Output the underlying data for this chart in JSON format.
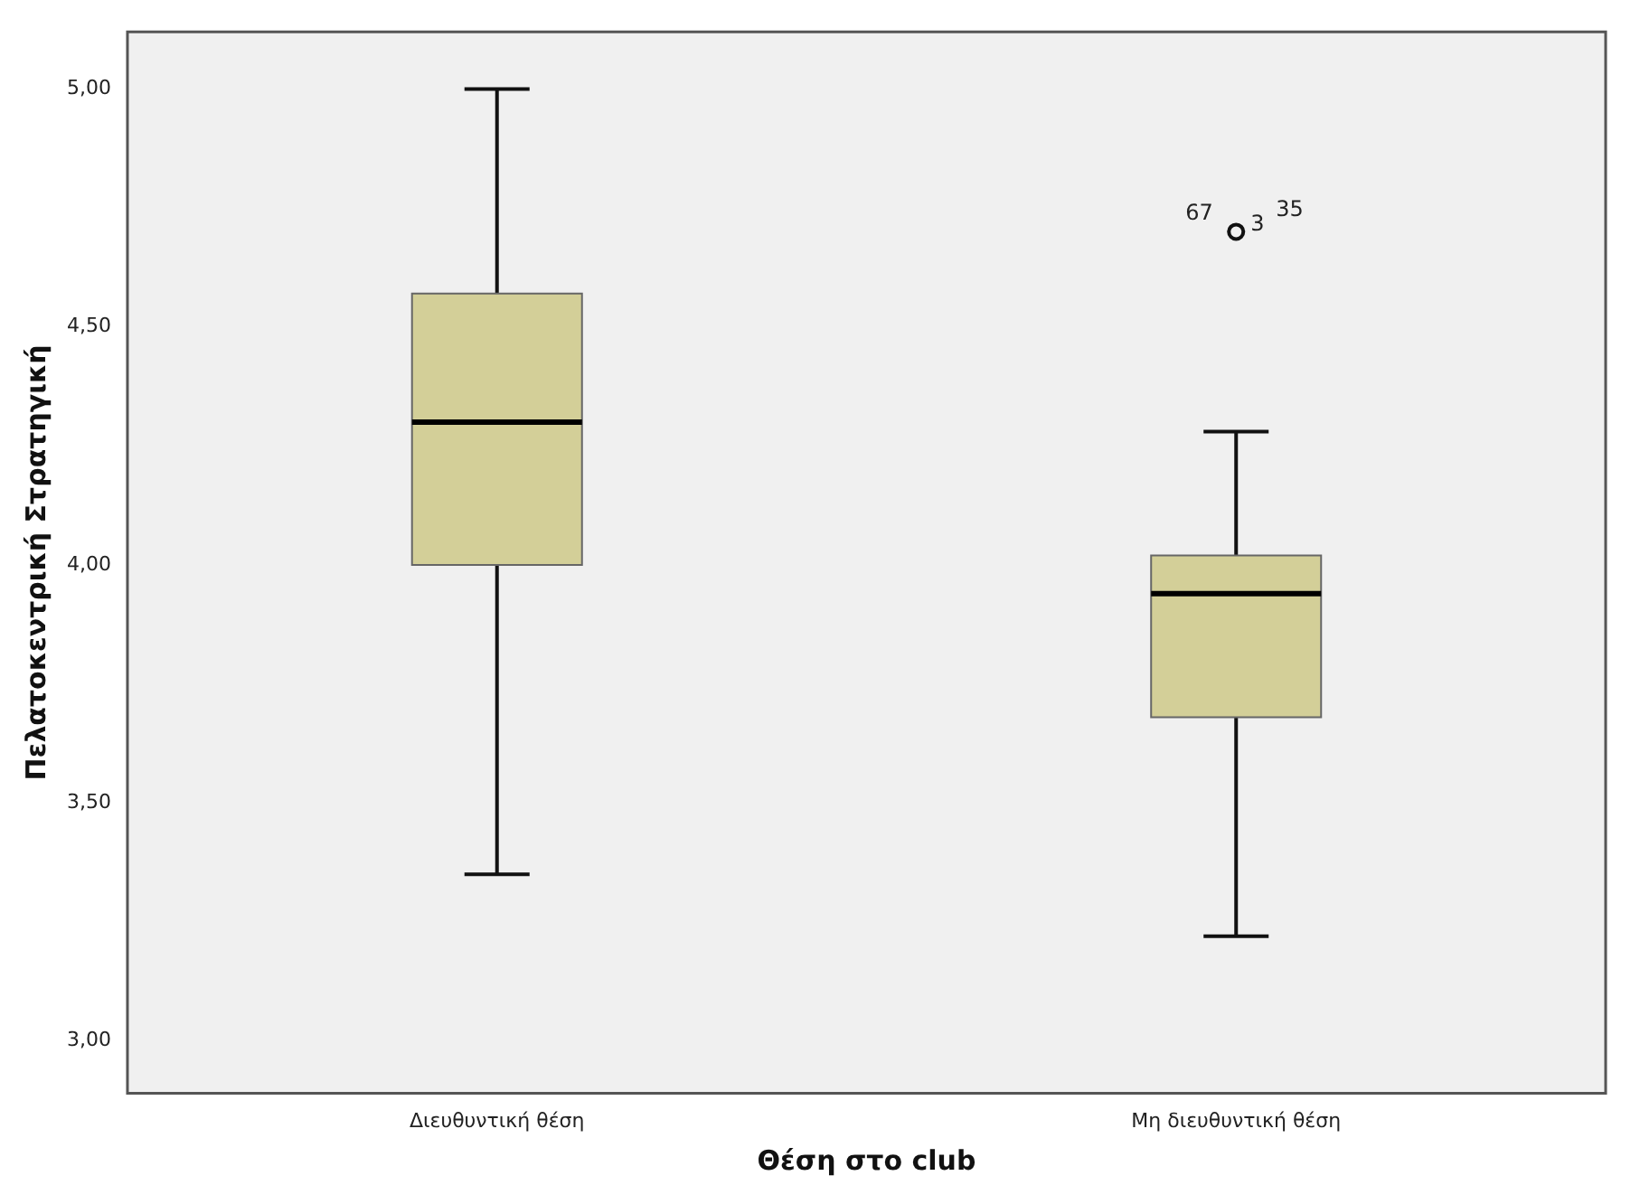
{
  "chart_data": {
    "type": "box",
    "xlabel": "Θέση στο club",
    "ylabel": "Πελατοκεντρική Στρατηγική",
    "categories": [
      "Διευθυντική θέση",
      "Μη διευθυντική θέση"
    ],
    "color": "#d3cf98",
    "boxes": [
      {
        "low": 3.35,
        "q1": 4.0,
        "median": 4.3,
        "q3": 4.57,
        "high": 5.0
      },
      {
        "low": 3.22,
        "q1": 3.68,
        "median": 3.94,
        "q3": 4.02,
        "high": 4.28,
        "outliers": [
          4.7
        ]
      }
    ],
    "ylim": [
      2.89,
      5.12
    ],
    "yticks": [
      {
        "value": 3,
        "label": "3,00"
      },
      {
        "value": 3.5,
        "label": "3,50"
      },
      {
        "value": 4,
        "label": "4,00"
      },
      {
        "value": 4.5,
        "label": "4,50"
      },
      {
        "value": 5,
        "label": "5,00"
      }
    ],
    "grid": false,
    "legend": false,
    "marker": "circle",
    "annotations": [
      "67",
      "3",
      "35"
    ]
  }
}
